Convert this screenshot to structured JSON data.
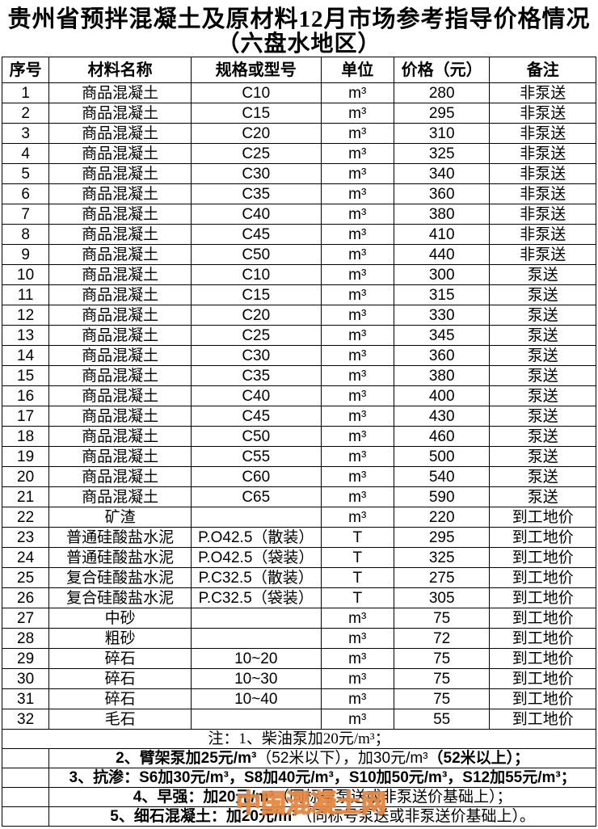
{
  "title": {
    "line1": "贵州省预拌混凝土及原材料12月市场参考指导价格情况",
    "line2": "（六盘水地区）"
  },
  "table": {
    "headers": [
      "序号",
      "材料名称",
      "规格或型号",
      "单位",
      "价格（元）",
      "备注"
    ],
    "rows": [
      [
        "1",
        "商品混凝土",
        "C10",
        "m³",
        "280",
        "非泵送"
      ],
      [
        "2",
        "商品混凝土",
        "C15",
        "m³",
        "295",
        "非泵送"
      ],
      [
        "3",
        "商品混凝土",
        "C20",
        "m³",
        "310",
        "非泵送"
      ],
      [
        "4",
        "商品混凝土",
        "C25",
        "m³",
        "325",
        "非泵送"
      ],
      [
        "5",
        "商品混凝土",
        "C30",
        "m³",
        "340",
        "非泵送"
      ],
      [
        "6",
        "商品混凝土",
        "C35",
        "m³",
        "360",
        "非泵送"
      ],
      [
        "7",
        "商品混凝土",
        "C40",
        "m³",
        "380",
        "非泵送"
      ],
      [
        "8",
        "商品混凝土",
        "C45",
        "m³",
        "410",
        "非泵送"
      ],
      [
        "9",
        "商品混凝土",
        "C50",
        "m³",
        "440",
        "非泵送"
      ],
      [
        "10",
        "商品混凝土",
        "C10",
        "m³",
        "300",
        "泵送"
      ],
      [
        "11",
        "商品混凝土",
        "C15",
        "m³",
        "315",
        "泵送"
      ],
      [
        "12",
        "商品混凝土",
        "C20",
        "m³",
        "330",
        "泵送"
      ],
      [
        "13",
        "商品混凝土",
        "C25",
        "m³",
        "345",
        "泵送"
      ],
      [
        "14",
        "商品混凝土",
        "C30",
        "m³",
        "360",
        "泵送"
      ],
      [
        "15",
        "商品混凝土",
        "C35",
        "m³",
        "380",
        "泵送"
      ],
      [
        "16",
        "商品混凝土",
        "C40",
        "m³",
        "400",
        "泵送"
      ],
      [
        "17",
        "商品混凝土",
        "C45",
        "m³",
        "430",
        "泵送"
      ],
      [
        "18",
        "商品混凝土",
        "C50",
        "m³",
        "460",
        "泵送"
      ],
      [
        "19",
        "商品混凝土",
        "C55",
        "m³",
        "500",
        "泵送"
      ],
      [
        "20",
        "商品混凝土",
        "C60",
        "m³",
        "540",
        "泵送"
      ],
      [
        "21",
        "商品混凝土",
        "C65",
        "m³",
        "590",
        "泵送"
      ],
      [
        "22",
        "矿渣",
        "",
        "m³",
        "220",
        "到工地价"
      ],
      [
        "23",
        "普通硅酸盐水泥",
        "P.O42.5（散装）",
        "T",
        "295",
        "到工地价"
      ],
      [
        "24",
        "普通硅酸盐水泥",
        "P.O42.5（袋装）",
        "T",
        "325",
        "到工地价"
      ],
      [
        "25",
        "复合硅酸盐水泥",
        "P.C32.5（散装）",
        "T",
        "275",
        "到工地价"
      ],
      [
        "26",
        "复合硅酸盐水泥",
        "P.C32.5（袋装）",
        "T",
        "305",
        "到工地价"
      ],
      [
        "27",
        "中砂",
        "",
        "m³",
        "75",
        "到工地价"
      ],
      [
        "28",
        "粗砂",
        "",
        "m³",
        "72",
        "到工地价"
      ],
      [
        "29",
        "碎石",
        "10~20",
        "m³",
        "75",
        "到工地价"
      ],
      [
        "30",
        "碎石",
        "10~30",
        "m³",
        "75",
        "到工地价"
      ],
      [
        "31",
        "碎石",
        "10~40",
        "m³",
        "75",
        "到工地价"
      ],
      [
        "32",
        "毛石",
        "",
        "m³",
        "55",
        "到工地价"
      ]
    ]
  },
  "notes": {
    "items": [
      {
        "indent": false,
        "style": "serif",
        "segments": [
          {
            "t": "注：1、柴油泵加20元/m³；",
            "b": false
          }
        ]
      },
      {
        "indent": true,
        "style": "sans",
        "segments": [
          {
            "t": "2、臂架泵加25元/m³",
            "b": true
          },
          {
            "t": "（52米以下），加30元/m³",
            "b": false
          },
          {
            "t": "（52米以上）；",
            "b": true
          }
        ]
      },
      {
        "indent": true,
        "style": "sans",
        "segments": [
          {
            "t": "3、抗渗：S6加30元/m³，S8加40元/m³，S10加50元/m³，S12加55元/m³；",
            "b": true
          }
        ]
      },
      {
        "indent": true,
        "style": "sans",
        "segments": [
          {
            "t": "4、早强：加20元/m³",
            "b": true
          },
          {
            "t": "（同标号泵送或非泵送价基础上）；",
            "b": false
          }
        ]
      },
      {
        "indent": true,
        "style": "sans",
        "segments": [
          {
            "t": "5、细石混凝土：加20元/m³",
            "b": true
          },
          {
            "t": "（同标号泵送或非泵送价基础上）。",
            "b": false
          }
        ]
      }
    ]
  },
  "watermark": {
    "text": "中国混凝土网",
    "color": "#E2823C"
  }
}
